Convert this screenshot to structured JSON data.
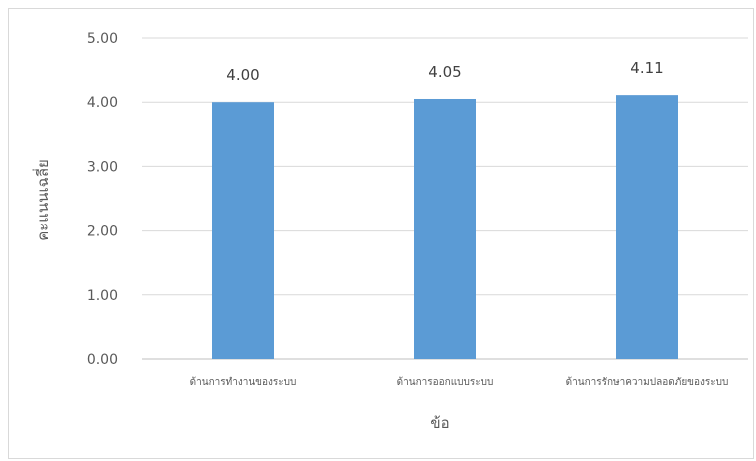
{
  "chart_data": {
    "type": "bar",
    "categories": [
      "ด้านการทำงานของระบบ",
      "ด้านการออกแบบระบบ",
      "ด้านการรักษาความปลอดภัยของระบบ"
    ],
    "values": [
      4.0,
      4.05,
      4.11
    ],
    "data_labels": [
      "4.00",
      "4.05",
      "4.11"
    ],
    "xlabel": "ข้อ",
    "ylabel": "คะแนนเฉลี่ย",
    "ylim": [
      0,
      5
    ],
    "yticks": [
      "0.00",
      "1.00",
      "2.00",
      "3.00",
      "4.00",
      "5.00"
    ],
    "grid": true,
    "legend": "none",
    "colors": {
      "bar": "#5b9bd5",
      "grid": "#d9d9d9",
      "axis": "#bfbfbf"
    }
  }
}
